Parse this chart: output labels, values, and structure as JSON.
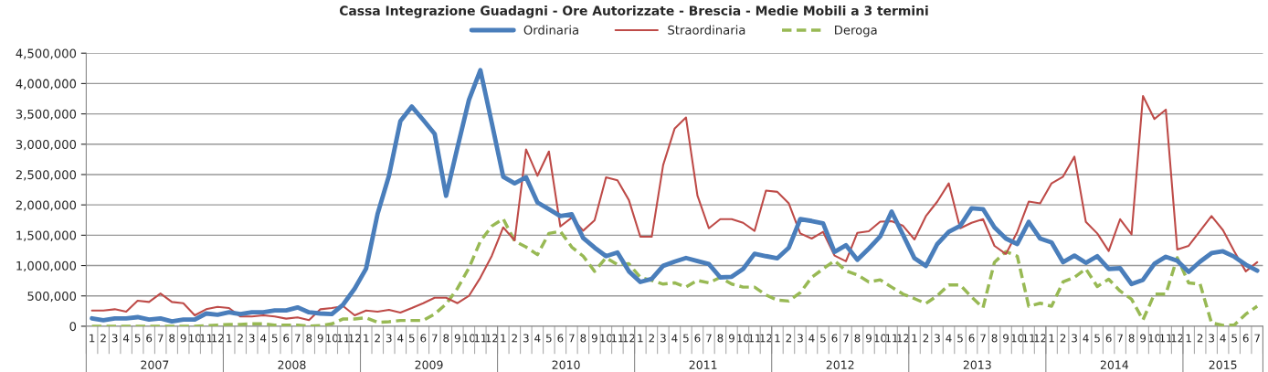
{
  "chart_data": {
    "type": "line",
    "title": "Cassa Integrazione Guadagni - Ore Autorizzate - Brescia - Medie Mobili a 3 termini",
    "categories": [
      "1",
      "2",
      "3",
      "4",
      "5",
      "6",
      "7",
      "8",
      "9",
      "10",
      "11",
      "12",
      "1",
      "2",
      "3",
      "4",
      "5",
      "6",
      "7",
      "8",
      "9",
      "10",
      "11",
      "12",
      "1",
      "2",
      "3",
      "4",
      "5",
      "6",
      "7",
      "8",
      "9",
      "10",
      "11",
      "12",
      "1",
      "2",
      "3",
      "4",
      "5",
      "6",
      "7",
      "8",
      "9",
      "10",
      "11",
      "12",
      "1",
      "2",
      "3",
      "4",
      "5",
      "6",
      "7",
      "8",
      "9",
      "10",
      "11",
      "12",
      "1",
      "2",
      "3",
      "4",
      "5",
      "6",
      "7",
      "8",
      "9",
      "10",
      "11",
      "12",
      "1",
      "2",
      "3",
      "4",
      "5",
      "6",
      "7",
      "8",
      "9",
      "10",
      "11",
      "12",
      "1",
      "2",
      "3",
      "4",
      "5",
      "6",
      "7",
      "8",
      "9",
      "10",
      "11",
      "12",
      "1",
      "2",
      "3",
      "4",
      "5",
      "6",
      "7"
    ],
    "annotations": [
      "2007",
      "2008",
      "2009",
      "2010",
      "2011",
      "2012",
      "2013",
      "2014",
      "2015"
    ],
    "series": [
      {
        "name": "Ordinaria",
        "color": "#4a7ebb",
        "line_style": "solid",
        "values": [
          130000,
          100000,
          130000,
          130000,
          150000,
          110000,
          130000,
          80000,
          110000,
          110000,
          210000,
          190000,
          230000,
          200000,
          230000,
          230000,
          260000,
          260000,
          310000,
          230000,
          210000,
          200000,
          360000,
          620000,
          950000,
          1850000,
          2480000,
          3380000,
          3620000,
          3400000,
          3170000,
          2150000,
          2950000,
          3730000,
          4220000,
          3350000,
          2465000,
          2355000,
          2455000,
          2040000,
          1930000,
          1815000,
          1845000,
          1455000,
          1295000,
          1155000,
          1215000,
          905000,
          730000,
          780000,
          995000,
          1065000,
          1125000,
          1075000,
          1025000,
          805000,
          815000,
          945000,
          1195000,
          1155000,
          1120000,
          1295000,
          1765000,
          1735000,
          1695000,
          1225000,
          1335000,
          1095000,
          1280000,
          1480000,
          1890000,
          1505000,
          1120000,
          995000,
          1355000,
          1555000,
          1655000,
          1945000,
          1930000,
          1630000,
          1445000,
          1355000,
          1720000,
          1445000,
          1380000,
          1055000,
          1165000,
          1045000,
          1155000,
          945000,
          955000,
          695000,
          765000,
          1030000,
          1145000,
          1080000,
          895000,
          1065000,
          1205000,
          1235000,
          1145000,
          1015000,
          915000
        ]
      },
      {
        "name": "Straordinaria",
        "color": "#be4b48",
        "line_style": "solid",
        "values": [
          260000,
          260000,
          280000,
          240000,
          420000,
          400000,
          540000,
          400000,
          380000,
          180000,
          280000,
          320000,
          300000,
          160000,
          160000,
          180000,
          160000,
          125000,
          145000,
          100000,
          280000,
          300000,
          330000,
          180000,
          260000,
          240000,
          270000,
          225000,
          300000,
          380000,
          470000,
          470000,
          380000,
          500000,
          800000,
          1160000,
          1630000,
          1415000,
          2915000,
          2480000,
          2880000,
          1645000,
          1790000,
          1575000,
          1745000,
          2455000,
          2405000,
          2080000,
          1475000,
          1475000,
          2655000,
          3255000,
          3440000,
          2155000,
          1615000,
          1765000,
          1765000,
          1705000,
          1570000,
          2235000,
          2215000,
          2025000,
          1530000,
          1445000,
          1555000,
          1165000,
          1070000,
          1540000,
          1565000,
          1725000,
          1730000,
          1655000,
          1430000,
          1815000,
          2055000,
          2355000,
          1615000,
          1705000,
          1765000,
          1325000,
          1190000,
          1555000,
          2055000,
          2025000,
          2355000,
          2465000,
          2795000,
          1720000,
          1530000,
          1240000,
          1765000,
          1515000,
          3795000,
          3415000,
          3570000,
          1265000,
          1325000,
          1570000,
          1815000,
          1585000,
          1230000,
          905000,
          1055000
        ]
      },
      {
        "name": "Deroga",
        "color": "#98b954",
        "line_style": "dashed",
        "values": [
          0,
          0,
          0,
          0,
          0,
          0,
          0,
          0,
          0,
          0,
          10000,
          20000,
          30000,
          30000,
          40000,
          40000,
          20000,
          20000,
          20000,
          0,
          10000,
          40000,
          120000,
          120000,
          140000,
          65000,
          75000,
          95000,
          95000,
          95000,
          200000,
          365000,
          625000,
          960000,
          1400000,
          1650000,
          1770000,
          1405000,
          1305000,
          1180000,
          1530000,
          1565000,
          1305000,
          1155000,
          905000,
          1130000,
          1015000,
          1030000,
          805000,
          755000,
          695000,
          715000,
          645000,
          755000,
          715000,
          805000,
          695000,
          645000,
          645000,
          515000,
          430000,
          415000,
          555000,
          805000,
          945000,
          1080000,
          915000,
          845000,
          730000,
          765000,
          645000,
          530000,
          455000,
          375000,
          505000,
          680000,
          680000,
          480000,
          305000,
          1055000,
          1230000,
          1155000,
          330000,
          380000,
          330000,
          730000,
          805000,
          945000,
          655000,
          775000,
          580000,
          445000,
          105000,
          530000,
          530000,
          1130000,
          715000,
          695000,
          55000,
          15000,
          20000,
          200000,
          330000
        ]
      }
    ],
    "ylim": [
      0,
      4500000
    ],
    "yticks": [
      0,
      {
        "value": 500000,
        "label": "500,000"
      },
      {
        "value": 1000000,
        "label": "1,000,000"
      },
      {
        "value": 1500000,
        "label": "1,500,000"
      },
      {
        "value": 2000000,
        "label": "2,000,000"
      },
      {
        "value": 2500000,
        "label": "2,500,000"
      },
      {
        "value": 3000000,
        "label": "3,000,000"
      },
      {
        "value": 3500000,
        "label": "3,500,000"
      },
      {
        "value": 4000000,
        "label": "4,000,000"
      },
      {
        "value": 4500000,
        "label": "4,500,000"
      }
    ],
    "grid": "y",
    "legend": "top"
  }
}
